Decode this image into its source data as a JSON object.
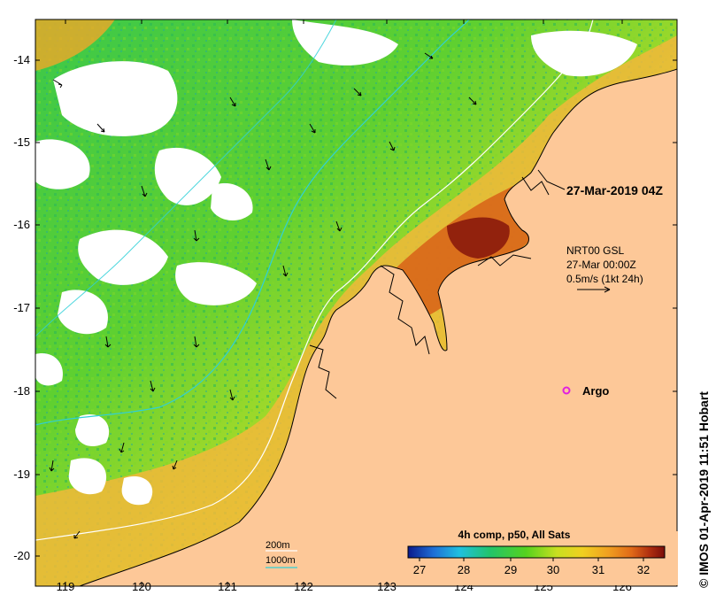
{
  "map": {
    "x_ticks": [
      "119",
      "120",
      "121",
      "122",
      "123",
      "124",
      "125",
      "126"
    ],
    "y_ticks": [
      "-14",
      "-15",
      "-16",
      "-17",
      "-18",
      "-19",
      "-20"
    ],
    "date_label": "27-Mar-2019 04Z",
    "current_legend": {
      "line1": "NRT00 GSL",
      "line2": "27-Mar 00:00Z",
      "line3": "0.5m/s (1kt 24h)"
    },
    "argo_label": "Argo",
    "contour_legend": {
      "c200": "200m",
      "c1000": "1000m"
    },
    "colorbar": {
      "title": "4h comp, p50, All Sats",
      "ticks": [
        "27",
        "28",
        "29",
        "30",
        "31",
        "32"
      ],
      "colors": [
        "#0a1a8c",
        "#1f6fd6",
        "#1fc0e0",
        "#22c46a",
        "#55d21e",
        "#c8e020",
        "#f0d020",
        "#f0a020",
        "#e06a18",
        "#b03010",
        "#7a0d0a"
      ]
    },
    "land_color": "#fdc898",
    "contour_colors": {
      "c200": "#ffffff",
      "c1000": "#2fd0d8"
    },
    "copyright": "© IMOS 01-Apr-2019 11:51 Hobart"
  }
}
